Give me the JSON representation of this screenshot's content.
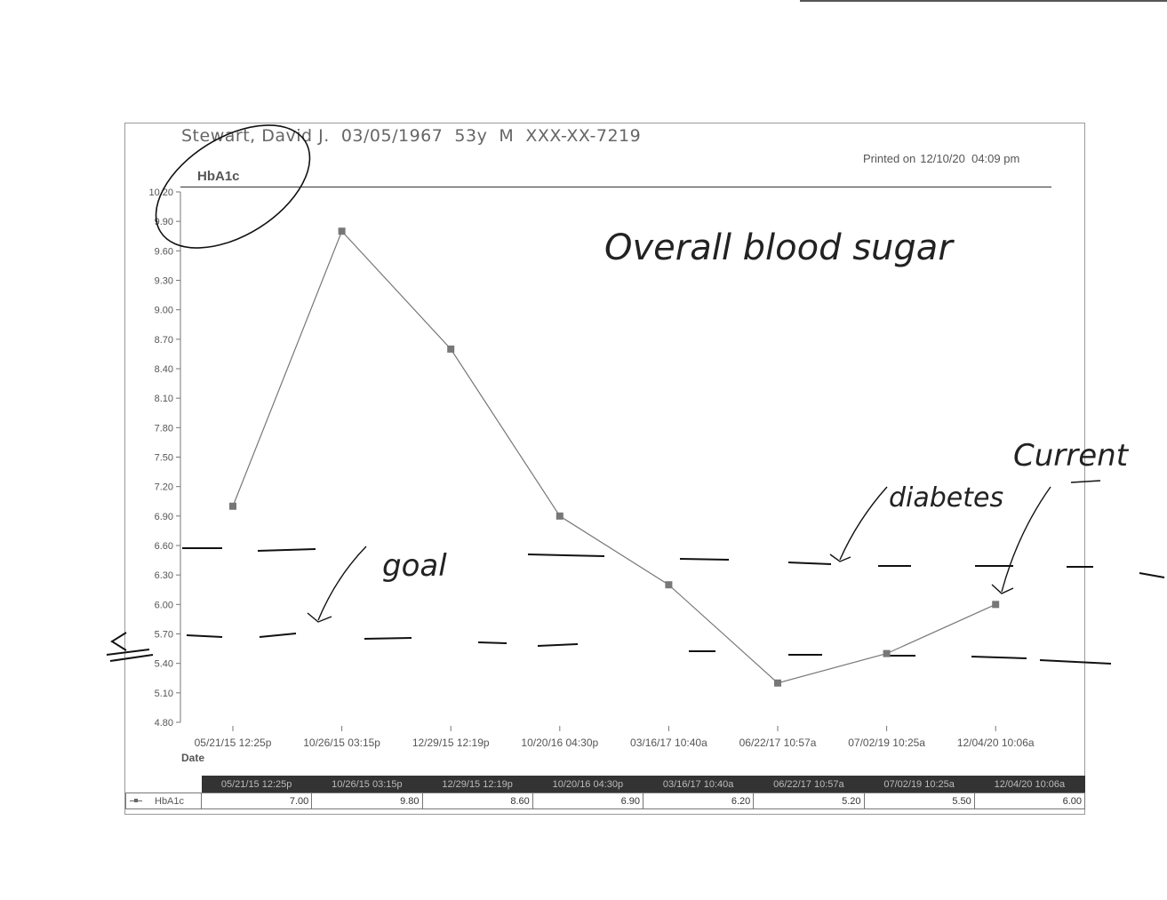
{
  "header": {
    "patient_line": "Stewart, David J.  03/05/1967  53y  M  XXX-XX-7219",
    "printed_label": "Printed on",
    "printed_value": "12/10/20  04:09 pm"
  },
  "chart_data": {
    "type": "line",
    "title": "HbA1c",
    "xlabel": "Date",
    "ylabel": "",
    "categories": [
      "05/21/15 12:25p",
      "10/26/15 03:15p",
      "12/29/15 12:19p",
      "10/20/16 04:30p",
      "03/16/17 10:40a",
      "06/22/17 10:57a",
      "07/02/19 10:25a",
      "12/04/20 10:06a"
    ],
    "series": [
      {
        "name": "HbA1c",
        "values": [
          7.0,
          9.8,
          8.6,
          6.9,
          6.2,
          5.2,
          5.5,
          6.0
        ]
      }
    ],
    "yticks": [
      "10.20",
      "9.90",
      "9.60",
      "9.30",
      "9.00",
      "8.70",
      "8.40",
      "8.10",
      "7.80",
      "7.50",
      "7.20",
      "6.90",
      "6.60",
      "6.30",
      "6.00",
      "5.70",
      "5.40",
      "5.10",
      "4.80"
    ],
    "ylim": [
      4.8,
      10.2
    ],
    "grid": false,
    "line_color": "#777777",
    "marker_color": "#777777"
  },
  "table": {
    "series_label": "HbA1c",
    "values": [
      "7.00",
      "9.80",
      "8.60",
      "6.90",
      "6.20",
      "5.20",
      "5.50",
      "6.00"
    ]
  },
  "annotations": {
    "overall": "Overall blood sugar",
    "goal": "goal",
    "diabetes": "diabetes",
    "current": "Current"
  }
}
